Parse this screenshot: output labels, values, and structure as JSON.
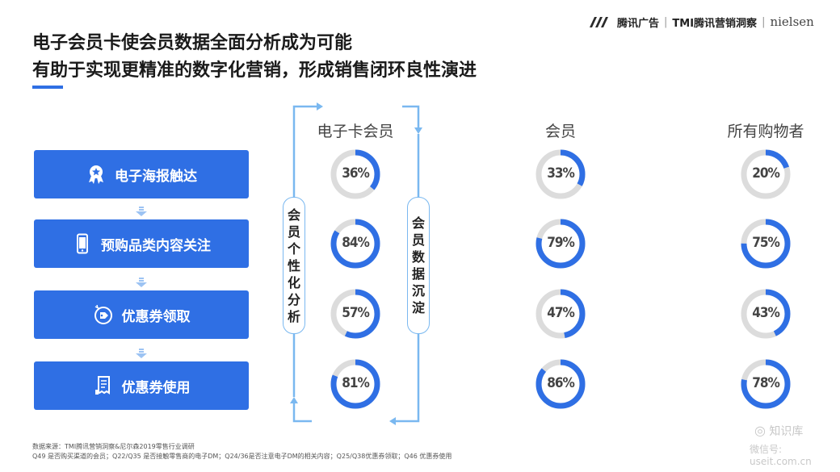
{
  "logo": {
    "brand": "腾讯广告",
    "partner": "TMI腾讯营销洞察",
    "nielsen": "nielsen"
  },
  "title": {
    "line1": "电子会员卡使会员数据全面分析成为可能",
    "line2": "有助于实现更精准的数字化营销，形成销售闭环良性演进"
  },
  "steps": [
    {
      "label": "电子海报触达",
      "icon": "award-ribbon-icon"
    },
    {
      "label": "预购品类内容关注",
      "icon": "smartphone-icon"
    },
    {
      "label": "优惠券领取",
      "icon": "coupon-tag-icon"
    },
    {
      "label": "优惠券使用",
      "icon": "receipt-icon"
    }
  ],
  "loop": {
    "left_label": [
      "会",
      "员",
      "个",
      "性",
      "化",
      "分",
      "析"
    ],
    "right_label": [
      "会",
      "员",
      "数",
      "据",
      "沉",
      "淀"
    ]
  },
  "chart_data": {
    "type": "donut-grid",
    "categories": [
      "电子海报触达",
      "预购品类内容关注",
      "优惠券领取",
      "优惠券使用"
    ],
    "series": [
      {
        "name": "电子卡会员",
        "values": [
          36,
          84,
          57,
          81
        ],
        "labels": [
          "36%",
          "84%",
          "57%",
          "81%"
        ]
      },
      {
        "name": "会员",
        "values": [
          33,
          79,
          47,
          86
        ],
        "labels": [
          "33%",
          "79%",
          "47%",
          "86%"
        ]
      },
      {
        "name": "所有购物者",
        "values": [
          20,
          75,
          43,
          78
        ],
        "labels": [
          "20%",
          "75%",
          "43%",
          "78%"
        ]
      }
    ],
    "unit": "%",
    "colors": {
      "fill": "#2f6fe4",
      "track": "#dcdcdc"
    }
  },
  "footer": {
    "source": "数据来源：TMI腾讯营销洞察&尼尔森2019零售行业调研",
    "notes": "Q49 是否购买渠道的会员；Q22/Q35 是否接触零售商的电子DM；Q24/36是否注意电子DM的相关内容；Q25/Q38优惠券领取；Q46 优惠券使用"
  },
  "watermark": {
    "name": "知识库",
    "wechat": "微信号: useit.com.cn"
  }
}
